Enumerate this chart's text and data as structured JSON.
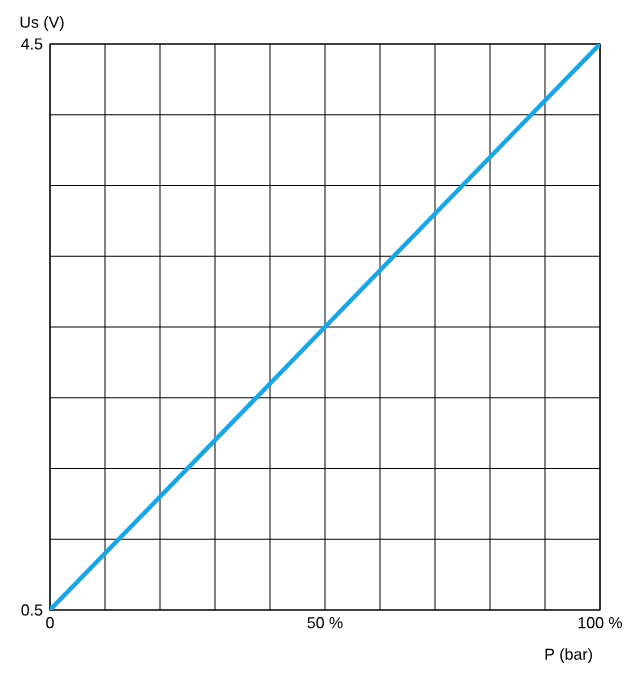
{
  "chart_data": {
    "type": "line",
    "xlabel": "P (bar)",
    "ylabel": "Us (V)",
    "xlim": [
      0,
      100
    ],
    "ylim": [
      0.5,
      4.5
    ],
    "xticks": [
      0,
      {
        "value": 10,
        "label": null
      },
      {
        "value": 20,
        "label": null
      },
      {
        "value": 30,
        "label": null
      },
      {
        "value": 40,
        "label": null
      },
      {
        "value": 50,
        "label": "50 %"
      },
      {
        "value": 60,
        "label": null
      },
      {
        "value": 70,
        "label": null
      },
      {
        "value": 80,
        "label": null
      },
      {
        "value": 90,
        "label": null
      },
      {
        "value": 100,
        "label": "100 %"
      }
    ],
    "yticks": [
      0.5,
      {
        "value": 1.0,
        "label": null
      },
      {
        "value": 1.5,
        "label": null
      },
      {
        "value": 2.0,
        "label": null
      },
      {
        "value": 2.5,
        "label": null
      },
      {
        "value": 3.0,
        "label": null
      },
      {
        "value": 3.5,
        "label": null
      },
      {
        "value": 4.0,
        "label": null
      },
      4.5
    ],
    "grid": true,
    "marker": "none",
    "line_style": "solid",
    "series": [
      {
        "color": "#1ca5e3",
        "x": [
          0,
          100
        ],
        "values": [
          0.5,
          4.5
        ]
      }
    ]
  }
}
